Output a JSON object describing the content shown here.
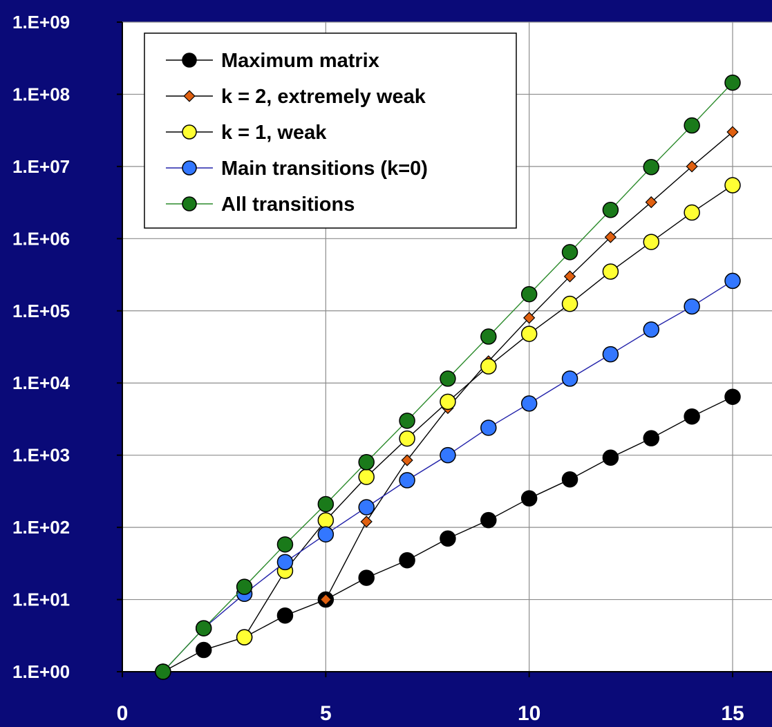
{
  "chart_data": {
    "type": "line",
    "title": "",
    "xlabel": "",
    "ylabel": "",
    "xlim": [
      0,
      15
    ],
    "ylim_log10": [
      0,
      9
    ],
    "yscale": "log",
    "x_ticks": [
      0,
      5,
      10,
      15
    ],
    "x_tick_labels": [
      "0",
      "5",
      "10",
      "15"
    ],
    "y_ticks": [
      1,
      10,
      100,
      1000,
      10000,
      100000,
      1000000,
      10000000,
      100000000,
      1000000000
    ],
    "y_tick_labels": [
      "1.E+00",
      "1.E+01",
      "1.E+02",
      "1.E+03",
      "1.E+04",
      "1.E+05",
      "1.E+06",
      "1.E+07",
      "1.E+08",
      "1.E+09"
    ],
    "grid": true,
    "legend_position": "top-left",
    "colors": {
      "page_background": "#0a0a78",
      "plot_background": "#ffffff",
      "grid": "#8c8c8c",
      "axis": "#000000"
    },
    "series": [
      {
        "name": "Maximum matrix",
        "marker": "circle",
        "color": "#000000",
        "line_color": "#000000",
        "x": [
          1,
          2,
          3,
          4,
          5,
          6,
          7,
          8,
          9,
          10,
          11,
          12,
          13,
          14,
          15
        ],
        "y": [
          1,
          2,
          3,
          6,
          10,
          20,
          35,
          70,
          126,
          252,
          462,
          924,
          1716,
          3432,
          6435
        ]
      },
      {
        "name": "k = 2, extremely weak",
        "marker": "diamond",
        "color": "#e06010",
        "line_color": "#000000",
        "x": [
          5,
          6,
          7,
          8,
          9,
          10,
          11,
          12,
          13,
          14,
          15
        ],
        "y": [
          10,
          120,
          850,
          4500,
          20000,
          80000,
          300000,
          1050000,
          3200000,
          10000000,
          30000000
        ]
      },
      {
        "name": "k = 1, weak",
        "marker": "circle",
        "color": "#ffff33",
        "line_color": "#000000",
        "x": [
          3,
          4,
          5,
          6,
          7,
          8,
          9,
          10,
          11,
          12,
          13,
          14,
          15
        ],
        "y": [
          3,
          25,
          125,
          500,
          1700,
          5500,
          17000,
          48000,
          125000,
          350000,
          900000,
          2300000,
          5500000
        ]
      },
      {
        "name": "Main transitions (k=0)",
        "marker": "circle",
        "color": "#3377ff",
        "line_color": "#2222aa",
        "x": [
          1,
          2,
          3,
          4,
          5,
          6,
          7,
          8,
          9,
          10,
          11,
          12,
          13,
          14,
          15
        ],
        "y": [
          1,
          4,
          12,
          33,
          80,
          190,
          450,
          1000,
          2400,
          5200,
          11500,
          25000,
          55000,
          115000,
          260000
        ]
      },
      {
        "name": "All transitions",
        "marker": "circle",
        "color": "#1a7a1a",
        "line_color": "#2a8a2a",
        "x": [
          1,
          2,
          3,
          4,
          5,
          6,
          7,
          8,
          9,
          10,
          11,
          12,
          13,
          14,
          15
        ],
        "y": [
          1,
          4,
          15,
          58,
          210,
          800,
          3000,
          11500,
          44000,
          170000,
          650000,
          2500000,
          9800000,
          37000000,
          145000000
        ]
      }
    ]
  }
}
